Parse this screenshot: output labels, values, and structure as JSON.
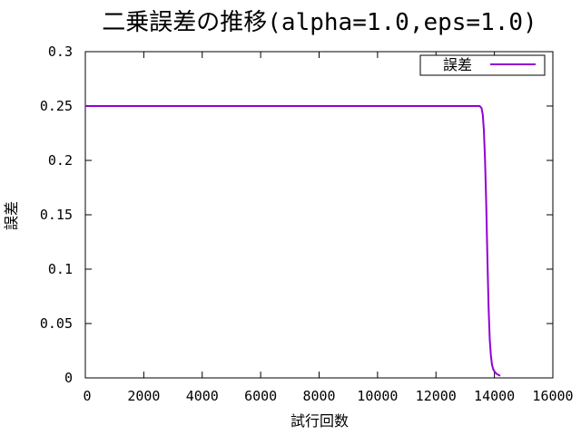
{
  "chart_data": {
    "type": "line",
    "title": "二乗誤差の推移(alpha=1.0,eps=1.0)",
    "xlabel": "試行回数",
    "ylabel": "誤差",
    "xlim": [
      0,
      16000
    ],
    "ylim": [
      0,
      0.3
    ],
    "xticks": [
      0,
      2000,
      4000,
      6000,
      8000,
      10000,
      12000,
      14000,
      16000
    ],
    "yticks": [
      0,
      0.05,
      0.1,
      0.15,
      0.2,
      0.25,
      0.3
    ],
    "xtick_labels": [
      "0",
      "2000",
      "4000",
      "6000",
      "8000",
      "10000",
      "12000",
      "14000",
      "16000"
    ],
    "ytick_labels": [
      "0",
      "0.05",
      "0.1",
      "0.15",
      "0.2",
      "0.25",
      "0.3"
    ],
    "grid": false,
    "legend_position": "top-right",
    "series": [
      {
        "name": "誤差",
        "color": "#9400d3",
        "x": [
          0,
          1000,
          2000,
          4000,
          6000,
          8000,
          10000,
          12000,
          13400,
          13500,
          13560,
          13600,
          13640,
          13680,
          13720,
          13760,
          13800,
          13840,
          13880,
          13920,
          13960,
          14000,
          14060,
          14120,
          14200
        ],
        "y": [
          0.25,
          0.25,
          0.25,
          0.25,
          0.25,
          0.25,
          0.25,
          0.25,
          0.25,
          0.25,
          0.248,
          0.242,
          0.228,
          0.2,
          0.16,
          0.11,
          0.065,
          0.035,
          0.02,
          0.012,
          0.008,
          0.006,
          0.004,
          0.003,
          0.002
        ]
      }
    ]
  }
}
